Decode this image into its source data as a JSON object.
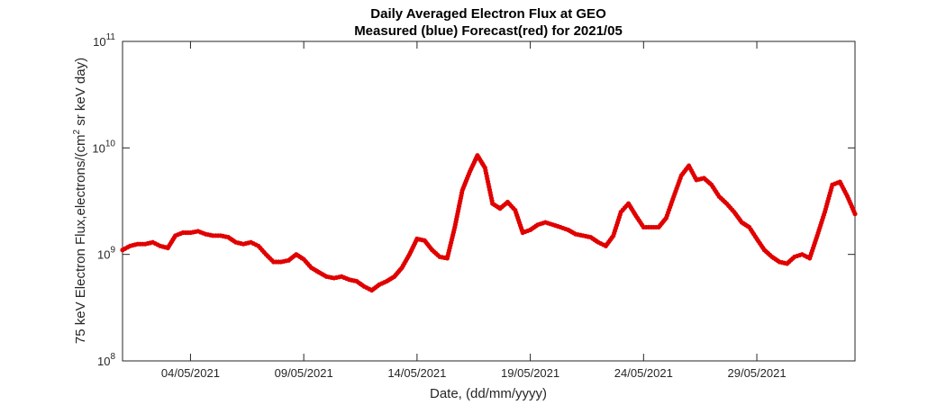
{
  "chart_data": {
    "type": "scatter",
    "title": "Daily Averaged Electron Flux at GEO",
    "subtitle": "Measured (blue) Forecast(red) for 2021/05",
    "xlabel": "Date, (dd/mm/yyyy)",
    "ylabel": "75 keV Electron Flux,electrons/(cm² sr keV day)",
    "y_scale": "log",
    "ylim": [
      100000000.0,
      100000000000.0
    ],
    "xlim": [
      "2021-05-01T00:00",
      "2021-06-02T08:00"
    ],
    "y_ticks": [
      {
        "value": 100000000.0,
        "base": "10",
        "exp": "8"
      },
      {
        "value": 1000000000.0,
        "base": "10",
        "exp": "9"
      },
      {
        "value": 10000000000.0,
        "base": "10",
        "exp": "10"
      },
      {
        "value": 100000000000.0,
        "base": "10",
        "exp": "11"
      }
    ],
    "x_ticks": [
      {
        "value": "2021-05-04",
        "label": "04/05/2021"
      },
      {
        "value": "2021-05-09",
        "label": "09/05/2021"
      },
      {
        "value": "2021-05-14",
        "label": "14/05/2021"
      },
      {
        "value": "2021-05-19",
        "label": "19/05/2021"
      },
      {
        "value": "2021-05-24",
        "label": "24/05/2021"
      },
      {
        "value": "2021-05-29",
        "label": "29/05/2021"
      }
    ],
    "grid": false,
    "series": [
      {
        "color": "#e00000",
        "points": [
          [
            "2021-05-01T00:00",
            1100000000.0
          ],
          [
            "2021-05-01T08:00",
            1200000000.0
          ],
          [
            "2021-05-01T16:00",
            1250000000.0
          ],
          [
            "2021-05-02T00:00",
            1250000000.0
          ],
          [
            "2021-05-02T08:00",
            1300000000.0
          ],
          [
            "2021-05-02T16:00",
            1200000000.0
          ],
          [
            "2021-05-03T00:00",
            1150000000.0
          ],
          [
            "2021-05-03T08:00",
            1500000000.0
          ],
          [
            "2021-05-03T16:00",
            1600000000.0
          ],
          [
            "2021-05-04T00:00",
            1600000000.0
          ],
          [
            "2021-05-04T08:00",
            1650000000.0
          ],
          [
            "2021-05-04T16:00",
            1550000000.0
          ],
          [
            "2021-05-05T00:00",
            1500000000.0
          ],
          [
            "2021-05-05T08:00",
            1500000000.0
          ],
          [
            "2021-05-05T16:00",
            1450000000.0
          ],
          [
            "2021-05-06T00:00",
            1300000000.0
          ],
          [
            "2021-05-06T08:00",
            1250000000.0
          ],
          [
            "2021-05-06T16:00",
            1300000000.0
          ],
          [
            "2021-05-07T00:00",
            1200000000.0
          ],
          [
            "2021-05-07T08:00",
            1000000000.0
          ],
          [
            "2021-05-07T16:00",
            850000000.0
          ],
          [
            "2021-05-08T00:00",
            850000000.0
          ],
          [
            "2021-05-08T08:00",
            880000000.0
          ],
          [
            "2021-05-08T16:00",
            1000000000.0
          ],
          [
            "2021-05-09T00:00",
            900000000.0
          ],
          [
            "2021-05-09T08:00",
            750000000.0
          ],
          [
            "2021-05-09T16:00",
            680000000.0
          ],
          [
            "2021-05-10T00:00",
            620000000.0
          ],
          [
            "2021-05-10T08:00",
            600000000.0
          ],
          [
            "2021-05-10T16:00",
            620000000.0
          ],
          [
            "2021-05-11T00:00",
            580000000.0
          ],
          [
            "2021-05-11T08:00",
            560000000.0
          ],
          [
            "2021-05-11T16:00",
            500000000.0
          ],
          [
            "2021-05-12T00:00",
            460000000.0
          ],
          [
            "2021-05-12T08:00",
            520000000.0
          ],
          [
            "2021-05-12T16:00",
            560000000.0
          ],
          [
            "2021-05-13T00:00",
            620000000.0
          ],
          [
            "2021-05-13T08:00",
            750000000.0
          ],
          [
            "2021-05-13T16:00",
            1000000000.0
          ],
          [
            "2021-05-14T00:00",
            1400000000.0
          ],
          [
            "2021-05-14T08:00",
            1350000000.0
          ],
          [
            "2021-05-14T16:00",
            1100000000.0
          ],
          [
            "2021-05-15T00:00",
            950000000.0
          ],
          [
            "2021-05-15T08:00",
            920000000.0
          ],
          [
            "2021-05-15T16:00",
            1800000000.0
          ],
          [
            "2021-05-16T00:00",
            4000000000.0
          ],
          [
            "2021-05-16T08:00",
            6000000000.0
          ],
          [
            "2021-05-16T16:00",
            8500000000.0
          ],
          [
            "2021-05-17T00:00",
            6500000000.0
          ],
          [
            "2021-05-17T08:00",
            3000000000.0
          ],
          [
            "2021-05-17T16:00",
            2700000000.0
          ],
          [
            "2021-05-18T00:00",
            3100000000.0
          ],
          [
            "2021-05-18T08:00",
            2600000000.0
          ],
          [
            "2021-05-18T16:00",
            1600000000.0
          ],
          [
            "2021-05-19T00:00",
            1700000000.0
          ],
          [
            "2021-05-19T08:00",
            1900000000.0
          ],
          [
            "2021-05-19T16:00",
            2000000000.0
          ],
          [
            "2021-05-20T00:00",
            1900000000.0
          ],
          [
            "2021-05-20T08:00",
            1800000000.0
          ],
          [
            "2021-05-20T16:00",
            1700000000.0
          ],
          [
            "2021-05-21T00:00",
            1550000000.0
          ],
          [
            "2021-05-21T08:00",
            1500000000.0
          ],
          [
            "2021-05-21T16:00",
            1450000000.0
          ],
          [
            "2021-05-22T00:00",
            1300000000.0
          ],
          [
            "2021-05-22T08:00",
            1200000000.0
          ],
          [
            "2021-05-22T16:00",
            1500000000.0
          ],
          [
            "2021-05-23T00:00",
            2500000000.0
          ],
          [
            "2021-05-23T08:00",
            3000000000.0
          ],
          [
            "2021-05-23T16:00",
            2300000000.0
          ],
          [
            "2021-05-24T00:00",
            1800000000.0
          ],
          [
            "2021-05-24T08:00",
            1800000000.0
          ],
          [
            "2021-05-24T16:00",
            1800000000.0
          ],
          [
            "2021-05-25T00:00",
            2200000000.0
          ],
          [
            "2021-05-25T08:00",
            3500000000.0
          ],
          [
            "2021-05-25T16:00",
            5500000000.0
          ],
          [
            "2021-05-26T00:00",
            6800000000.0
          ],
          [
            "2021-05-26T08:00",
            5000000000.0
          ],
          [
            "2021-05-26T16:00",
            5200000000.0
          ],
          [
            "2021-05-27T00:00",
            4500000000.0
          ],
          [
            "2021-05-27T08:00",
            3500000000.0
          ],
          [
            "2021-05-27T16:00",
            3000000000.0
          ],
          [
            "2021-05-28T00:00",
            2500000000.0
          ],
          [
            "2021-05-28T08:00",
            2000000000.0
          ],
          [
            "2021-05-28T16:00",
            1800000000.0
          ],
          [
            "2021-05-29T00:00",
            1400000000.0
          ],
          [
            "2021-05-29T08:00",
            1100000000.0
          ],
          [
            "2021-05-29T16:00",
            950000000.0
          ],
          [
            "2021-05-30T00:00",
            850000000.0
          ],
          [
            "2021-05-30T08:00",
            820000000.0
          ],
          [
            "2021-05-30T16:00",
            950000000.0
          ],
          [
            "2021-05-31T00:00",
            1000000000.0
          ],
          [
            "2021-05-31T08:00",
            920000000.0
          ],
          [
            "2021-05-31T16:00",
            1500000000.0
          ],
          [
            "2021-06-01T00:00",
            2500000000.0
          ],
          [
            "2021-06-01T08:00",
            4500000000.0
          ],
          [
            "2021-06-01T16:00",
            4800000000.0
          ],
          [
            "2021-06-02T00:00",
            3500000000.0
          ],
          [
            "2021-06-02T08:00",
            2400000000.0
          ]
        ]
      }
    ]
  }
}
